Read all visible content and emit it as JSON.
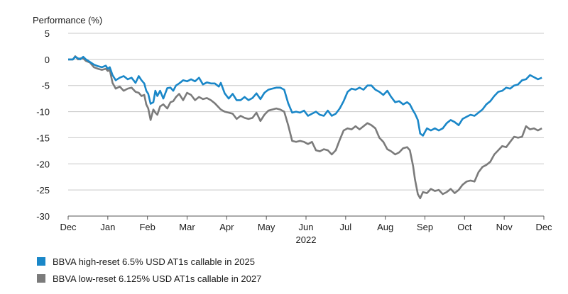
{
  "chart_data": {
    "type": "line",
    "ylabel": "Performance (%)",
    "xlabel": "2022",
    "ylim": [
      -30,
      5
    ],
    "yticks": [
      5,
      0,
      -5,
      -10,
      -15,
      -20,
      -25,
      -30
    ],
    "ytick_labels": [
      "5",
      "0",
      "-5",
      "-10",
      "-15",
      "-20",
      "-25",
      "-30"
    ],
    "x_range": [
      0,
      12
    ],
    "xtick_labels": [
      "Dec",
      "Jan",
      "Feb",
      "Mar",
      "Apr",
      "May",
      "Jun",
      "Jul",
      "Aug",
      "Sep",
      "Oct",
      "Nov",
      "Dec"
    ],
    "grid": "horizontal",
    "legend_position": "bottom-left",
    "series": [
      {
        "name": "BBVA high-reset 6.5% USD AT1s callable in 2025",
        "color": "#1a87c8",
        "x": [
          0,
          0.12,
          0.18,
          0.25,
          0.3,
          0.38,
          0.45,
          0.55,
          0.65,
          0.75,
          0.85,
          0.95,
          1.0,
          1.05,
          1.12,
          1.2,
          1.3,
          1.4,
          1.5,
          1.6,
          1.7,
          1.78,
          1.85,
          1.92,
          1.97,
          2.02,
          2.08,
          2.15,
          2.2,
          2.25,
          2.32,
          2.4,
          2.5,
          2.58,
          2.65,
          2.72,
          2.8,
          2.9,
          3.0,
          3.1,
          3.2,
          3.3,
          3.4,
          3.5,
          3.6,
          3.7,
          3.8,
          3.85,
          3.95,
          4.05,
          4.15,
          4.25,
          4.35,
          4.45,
          4.55,
          4.65,
          4.75,
          4.85,
          4.95,
          5.05,
          5.15,
          5.25,
          5.35,
          5.45,
          5.55,
          5.65,
          5.75,
          5.85,
          5.95,
          6.05,
          6.15,
          6.25,
          6.35,
          6.45,
          6.55,
          6.65,
          6.75,
          6.85,
          6.95,
          7.05,
          7.15,
          7.25,
          7.35,
          7.45,
          7.55,
          7.65,
          7.75,
          7.85,
          7.95,
          8.05,
          8.15,
          8.25,
          8.35,
          8.45,
          8.55,
          8.62,
          8.7,
          8.75,
          8.82,
          8.88,
          8.95,
          9.05,
          9.15,
          9.25,
          9.35,
          9.45,
          9.55,
          9.65,
          9.75,
          9.85,
          9.95,
          10.05,
          10.15,
          10.25,
          10.35,
          10.45,
          10.55,
          10.65,
          10.75,
          10.85,
          10.95,
          11.05,
          11.15,
          11.25,
          11.35,
          11.45,
          11.55,
          11.65,
          11.75,
          11.85,
          11.95
        ],
        "values": [
          0,
          0,
          0.5,
          0.2,
          0,
          0.5,
          0,
          -0.5,
          -1,
          -1.3,
          -1.5,
          -1.2,
          -1.8,
          -1.5,
          -3,
          -4,
          -3.5,
          -3.2,
          -3.8,
          -3.5,
          -4.5,
          -3.2,
          -4,
          -4.6,
          -6,
          -6.6,
          -8.5,
          -8.2,
          -6,
          -7,
          -6,
          -7.5,
          -5.5,
          -5.4,
          -6,
          -5,
          -4.6,
          -4,
          -4.2,
          -3.8,
          -4.2,
          -3.5,
          -4.8,
          -4.4,
          -4.6,
          -4.6,
          -5.2,
          -4.5,
          -6.5,
          -7.5,
          -6.6,
          -7.8,
          -7.8,
          -7.2,
          -7.8,
          -7.4,
          -6.5,
          -7.6,
          -6.4,
          -5.8,
          -5.6,
          -5.4,
          -5.4,
          -5.8,
          -8.4,
          -10.2,
          -10,
          -10.2,
          -9.8,
          -10.8,
          -10.4,
          -10,
          -10.6,
          -10.8,
          -9.8,
          -10.8,
          -10.4,
          -9.4,
          -8,
          -6.2,
          -5.6,
          -5.8,
          -5.4,
          -5.8,
          -5,
          -5,
          -5.8,
          -6.2,
          -6.8,
          -6,
          -7.2,
          -8.2,
          -8,
          -8.6,
          -8.2,
          -8.6,
          -9.8,
          -10.4,
          -11.6,
          -14.2,
          -14.6,
          -13.2,
          -13.6,
          -13.2,
          -13.6,
          -13.2,
          -12.2,
          -11.6,
          -12,
          -12.6,
          -11.4,
          -11,
          -10.6,
          -10.8,
          -10.2,
          -9.6,
          -8.6,
          -8,
          -7,
          -6.2,
          -6,
          -5.4,
          -5.6,
          -5,
          -4.8,
          -4,
          -3.8,
          -3,
          -3.4,
          -3.8,
          -3.5
        ],
        "label_note": ""
      },
      {
        "name": "BBVA low-reset 6.125% USD AT1s callable in 2027",
        "color": "#7b7b7b",
        "x": [
          0,
          0.12,
          0.18,
          0.25,
          0.3,
          0.38,
          0.45,
          0.55,
          0.65,
          0.75,
          0.85,
          0.95,
          1.0,
          1.05,
          1.12,
          1.2,
          1.3,
          1.4,
          1.5,
          1.6,
          1.7,
          1.78,
          1.85,
          1.92,
          1.97,
          2.02,
          2.08,
          2.15,
          2.2,
          2.25,
          2.32,
          2.4,
          2.5,
          2.58,
          2.65,
          2.72,
          2.8,
          2.9,
          3.0,
          3.1,
          3.2,
          3.3,
          3.4,
          3.5,
          3.6,
          3.7,
          3.8,
          3.85,
          3.95,
          4.05,
          4.15,
          4.25,
          4.35,
          4.45,
          4.55,
          4.65,
          4.75,
          4.85,
          4.95,
          5.05,
          5.15,
          5.25,
          5.35,
          5.45,
          5.55,
          5.65,
          5.75,
          5.85,
          5.95,
          6.05,
          6.15,
          6.25,
          6.35,
          6.45,
          6.55,
          6.65,
          6.75,
          6.85,
          6.95,
          7.05,
          7.15,
          7.25,
          7.35,
          7.45,
          7.55,
          7.65,
          7.75,
          7.85,
          7.95,
          8.05,
          8.15,
          8.25,
          8.35,
          8.45,
          8.55,
          8.62,
          8.7,
          8.75,
          8.82,
          8.88,
          8.95,
          9.05,
          9.15,
          9.25,
          9.35,
          9.45,
          9.55,
          9.65,
          9.75,
          9.85,
          9.95,
          10.05,
          10.15,
          10.25,
          10.35,
          10.45,
          10.55,
          10.65,
          10.75,
          10.85,
          10.95,
          11.05,
          11.15,
          11.25,
          11.35,
          11.45,
          11.55,
          11.65,
          11.75,
          11.85,
          11.95
        ],
        "values": [
          0,
          0,
          0.6,
          0,
          0.2,
          0.2,
          -0.3,
          -0.6,
          -1.5,
          -1.8,
          -2,
          -1.8,
          -2.2,
          -2,
          -4.5,
          -5.6,
          -5.2,
          -6,
          -5.6,
          -5.4,
          -6.2,
          -6.4,
          -7,
          -6.8,
          -8.6,
          -9.4,
          -11.6,
          -9.6,
          -10.2,
          -10.6,
          -9,
          -8.6,
          -9.4,
          -8.2,
          -8,
          -7.2,
          -6.6,
          -7.8,
          -6.4,
          -6.8,
          -7.8,
          -7.2,
          -7.6,
          -7.4,
          -7.8,
          -8.4,
          -9.2,
          -9.6,
          -10,
          -10.2,
          -10.4,
          -11.4,
          -10.8,
          -11.2,
          -11.4,
          -11.2,
          -10.2,
          -11.8,
          -10.6,
          -9.8,
          -9.6,
          -9.4,
          -9.6,
          -10,
          -12.6,
          -15.6,
          -15.8,
          -15.6,
          -15.8,
          -16.2,
          -15.8,
          -17.4,
          -17.6,
          -17.2,
          -17.4,
          -18.2,
          -17.4,
          -15.4,
          -13.6,
          -13.2,
          -13.4,
          -12.8,
          -13.4,
          -12.8,
          -12.2,
          -12.6,
          -13.2,
          -15,
          -15.8,
          -17.2,
          -17.6,
          -18.2,
          -17.8,
          -17,
          -16.8,
          -17.4,
          -20.4,
          -23,
          -25.8,
          -26.6,
          -25.4,
          -25.6,
          -24.8,
          -25.2,
          -25,
          -25.8,
          -25.4,
          -24.8,
          -25.6,
          -25,
          -24,
          -23.4,
          -23.2,
          -23.4,
          -21.6,
          -20.6,
          -20.2,
          -19.6,
          -18.2,
          -17.4,
          -16.6,
          -16.8,
          -15.8,
          -14.8,
          -15,
          -14.8,
          -12.8,
          -13.4,
          -13.2,
          -13.6,
          -13.2
        ],
        "label_note": ""
      }
    ]
  }
}
